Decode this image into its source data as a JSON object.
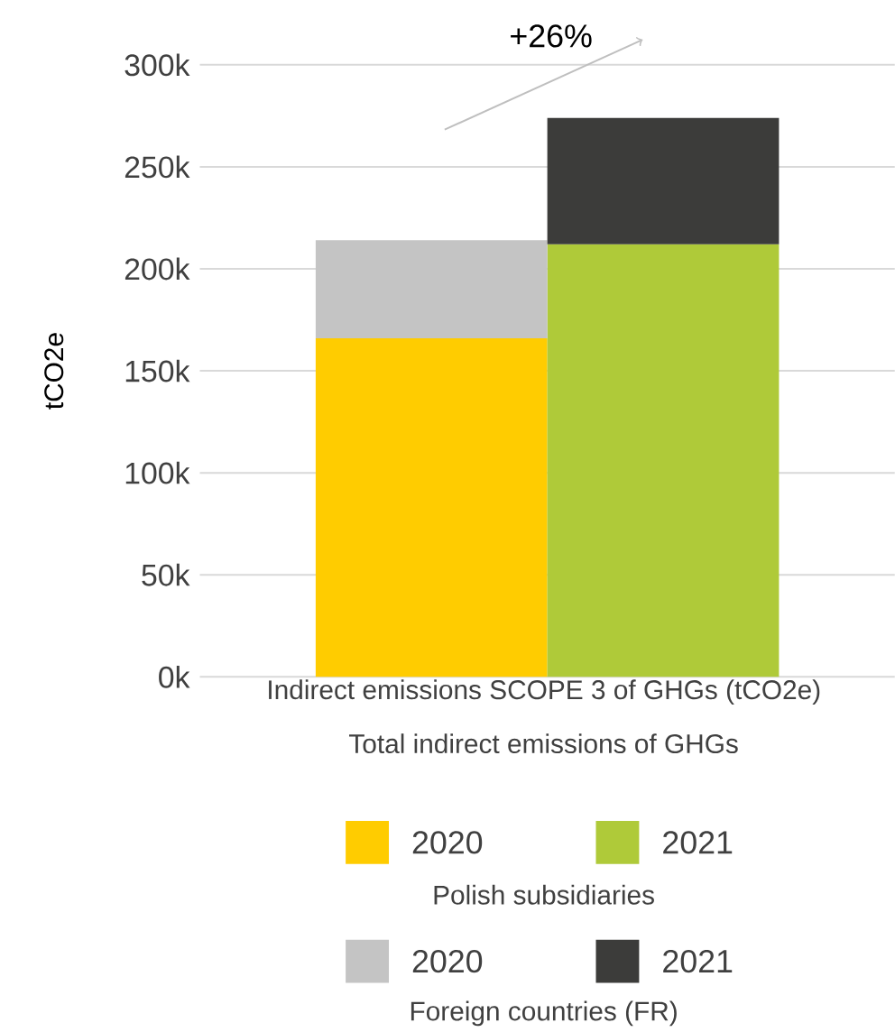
{
  "chart_data": {
    "type": "bar",
    "stacked": true,
    "categories": [
      null,
      null
    ],
    "xlabel": "Indirect emissions SCOPE 3 of GHGs (tCO2e)",
    "ylabel": "tCO2e",
    "series": [
      {
        "name": "2020",
        "color": "#ffcc00",
        "values": [
          166000,
          null
        ]
      },
      {
        "name": "2021",
        "color": "#afca39",
        "values": [
          null,
          212000
        ]
      },
      {
        "name": "2020",
        "color": "#c4c4c4",
        "values": [
          48000,
          null
        ]
      },
      {
        "name": "2021",
        "color": "#3c3c3a",
        "values": [
          null,
          62000
        ]
      }
    ],
    "ylim": [
      0,
      300000
    ],
    "yticks": [
      {
        "value": 0,
        "label": "0k"
      },
      {
        "value": 50000,
        "label": "50k"
      },
      {
        "value": 100000,
        "label": "100k"
      },
      {
        "value": 150000,
        "label": "150k"
      },
      {
        "value": 200000,
        "label": "200k"
      },
      {
        "value": 250000,
        "label": "250k"
      },
      {
        "value": 300000,
        "label": "300k"
      }
    ],
    "grid": "y",
    "legend": "bottom",
    "annotations": [
      "+26%",
      "Total indirect emissions of GHGs",
      "Polish subsidiaries",
      "Foreign countries (FR)"
    ]
  }
}
